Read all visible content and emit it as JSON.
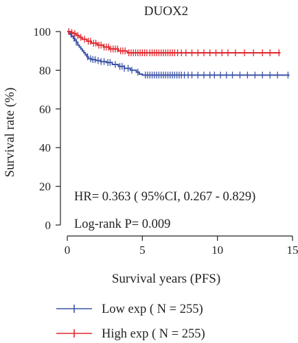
{
  "chart_data": {
    "type": "line",
    "title": "DUOX2",
    "xlabel": "Survival years (PFS)",
    "ylabel": "Survival rate (%)",
    "xlim": [
      0,
      15
    ],
    "ylim": [
      0,
      100
    ],
    "xticks": [
      0,
      5,
      10,
      15
    ],
    "yticks": [
      0,
      20,
      40,
      60,
      80,
      100
    ],
    "grid": false,
    "legend_position": "bottom",
    "annotations": {
      "hr": "HR= 0.363 ( 95%CI, 0.267 - 0.829)",
      "logrank": "Log-rank P= 0.009"
    },
    "series": [
      {
        "name": "Low exp ( N = 255)",
        "color": "#3b53a6",
        "x": [
          0,
          0.1,
          0.2,
          0.3,
          0.4,
          0.5,
          0.6,
          0.7,
          0.8,
          0.9,
          1.0,
          1.1,
          1.2,
          1.3,
          1.4,
          1.6,
          1.9,
          2.2,
          2.6,
          3.0,
          3.4,
          3.8,
          4.2,
          4.6,
          4.8,
          5.0,
          14.8
        ],
        "y": [
          100,
          99,
          98.5,
          97.5,
          96.5,
          95.5,
          94.5,
          93,
          92,
          91,
          90,
          89,
          88,
          87,
          86,
          85.5,
          85,
          84.5,
          84,
          83,
          82,
          81,
          80,
          79,
          78,
          77.5,
          77.5
        ],
        "censor_x": [
          0.25,
          0.45,
          0.6,
          1.35,
          1.55,
          1.7,
          1.85,
          2.05,
          2.25,
          2.45,
          2.7,
          2.85,
          3.2,
          3.5,
          3.65,
          3.8,
          4.05,
          4.3,
          4.7,
          5.2,
          5.35,
          5.5,
          5.65,
          5.8,
          5.95,
          6.1,
          6.25,
          6.4,
          6.55,
          6.7,
          6.85,
          7.0,
          7.15,
          7.3,
          7.45,
          7.6,
          7.8,
          8.05,
          8.3,
          8.7,
          9.1,
          9.5,
          9.8,
          10.2,
          10.6,
          11.0,
          11.5,
          12.0,
          12.5,
          13.0,
          13.5,
          14.0,
          14.7
        ]
      },
      {
        "name": "High exp ( N = 255)",
        "color": "#e0262d",
        "x": [
          0,
          0.2,
          0.4,
          0.6,
          0.8,
          1.0,
          1.3,
          1.6,
          2.0,
          2.4,
          2.8,
          3.4,
          4.0,
          14.2
        ],
        "y": [
          100,
          99.5,
          99,
          98,
          97,
          96,
          95,
          94,
          93,
          92,
          91,
          90,
          89,
          89
        ],
        "censor_x": [
          0.1,
          0.3,
          0.5,
          0.7,
          0.9,
          1.15,
          1.4,
          1.55,
          1.75,
          1.9,
          2.1,
          2.25,
          2.45,
          2.6,
          2.75,
          2.9,
          3.05,
          3.2,
          3.35,
          3.55,
          3.7,
          3.85,
          4.1,
          4.25,
          4.4,
          4.55,
          4.7,
          4.85,
          5.0,
          5.15,
          5.3,
          5.5,
          5.65,
          5.8,
          5.95,
          6.1,
          6.25,
          6.4,
          6.55,
          6.7,
          6.85,
          7.0,
          7.15,
          7.35,
          7.6,
          7.9,
          8.3,
          8.7,
          9.1,
          9.5,
          9.9,
          10.3,
          10.7,
          11.2,
          11.8,
          12.4,
          13.0,
          13.5,
          14.1
        ]
      }
    ]
  }
}
